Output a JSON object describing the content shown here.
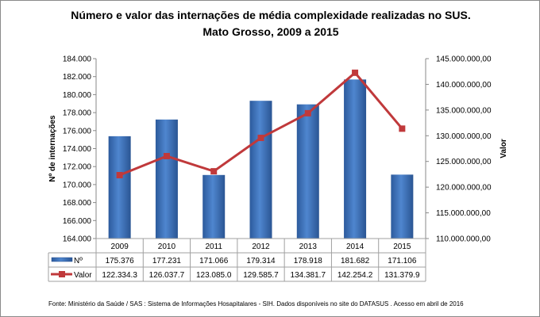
{
  "chart_data": {
    "type": "bar+line",
    "title": "Número e valor das internações de média complexidade realizadas no SUS.",
    "subtitle": "Mato Grosso, 2009 a 2015",
    "categories": [
      "2009",
      "2010",
      "2011",
      "2012",
      "2013",
      "2014",
      "2015"
    ],
    "series": [
      {
        "name": "Nº",
        "type": "bar",
        "axis": "left",
        "color": "#3a6fb6",
        "values": [
          175376,
          177231,
          171066,
          179314,
          178918,
          181682,
          171106
        ],
        "labels": [
          "175.376",
          "177.231",
          "171.066",
          "179.314",
          "178.918",
          "181.682",
          "171.106"
        ]
      },
      {
        "name": "Valor",
        "type": "line",
        "axis": "right",
        "color": "#c0393b",
        "values": [
          122334300,
          126037700,
          123085000,
          129585700,
          134381700,
          142254200,
          131379900
        ],
        "labels": [
          "122.334.3",
          "126.037.7",
          "123.085.0",
          "129.585.7",
          "134.381.7",
          "142.254.2",
          "131.379.9"
        ]
      }
    ],
    "ylabel_left": "Nº de internações",
    "ylabel_right": "Valor",
    "ylim_left": [
      164000,
      184000
    ],
    "ylim_right": [
      110000000,
      145000000
    ],
    "yticks_left": [
      "164.000",
      "166.000",
      "168.000",
      "170.000",
      "172.000",
      "174.000",
      "176.000",
      "178.000",
      "180.000",
      "182.000",
      "184.000"
    ],
    "yticks_right": [
      "110.000.000,00",
      "115.000.000,00",
      "120.000.000,00",
      "125.000.000,00",
      "130.000.000,00",
      "135.000.000,00",
      "140.000.000,00",
      "145.000.000,00"
    ],
    "data_table": true,
    "grid": false
  },
  "source": "Fonte:  Ministério da Saúde  / SAS : Sistema de Informações Hosapitalares - SIH. Dados disponíveis no site do DATASUS . Acesso em abril de 2016"
}
